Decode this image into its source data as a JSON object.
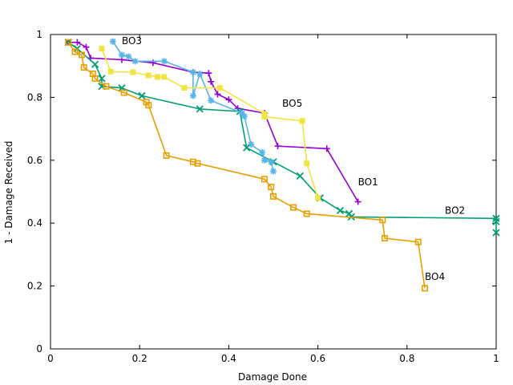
{
  "chart_data": {
    "type": "line",
    "title": "",
    "xlabel": "Damage Done",
    "ylabel": "1 - Damage Received",
    "xlim": [
      0,
      1
    ],
    "ylim": [
      0,
      1
    ],
    "x_ticks": [
      "0",
      "0.2",
      "0.4",
      "0.6",
      "0.8",
      "1"
    ],
    "y_ticks": [
      "0",
      "0.2",
      "0.4",
      "0.6",
      "0.8",
      "1"
    ],
    "grid": false,
    "series": [
      {
        "name": "BO1",
        "color": "#9400d3",
        "marker": "plus",
        "label_at": [
          0.69,
          0.52
        ],
        "points": [
          [
            0.04,
            0.975
          ],
          [
            0.06,
            0.975
          ],
          [
            0.08,
            0.96
          ],
          [
            0.09,
            0.925
          ],
          [
            0.16,
            0.92
          ],
          [
            0.23,
            0.91
          ],
          [
            0.32,
            0.88
          ],
          [
            0.355,
            0.877
          ],
          [
            0.36,
            0.85
          ],
          [
            0.375,
            0.81
          ],
          [
            0.4,
            0.793
          ],
          [
            0.42,
            0.765
          ],
          [
            0.48,
            0.75
          ],
          [
            0.51,
            0.645
          ],
          [
            0.62,
            0.637
          ],
          [
            0.69,
            0.468
          ]
        ]
      },
      {
        "name": "BO2",
        "color": "#009e73",
        "marker": "x",
        "label_at": [
          0.885,
          0.43
        ],
        "points": [
          [
            0.04,
            0.975
          ],
          [
            0.06,
            0.955
          ],
          [
            0.1,
            0.905
          ],
          [
            0.115,
            0.86
          ],
          [
            0.115,
            0.835
          ],
          [
            0.16,
            0.83
          ],
          [
            0.205,
            0.805
          ],
          [
            0.335,
            0.763
          ],
          [
            0.425,
            0.755
          ],
          [
            0.44,
            0.64
          ],
          [
            0.5,
            0.595
          ],
          [
            0.56,
            0.55
          ],
          [
            0.605,
            0.48
          ],
          [
            0.65,
            0.44
          ],
          [
            0.67,
            0.43
          ],
          [
            0.675,
            0.42
          ],
          [
            1.0,
            0.415
          ],
          [
            1.0,
            0.405
          ],
          [
            1.0,
            0.37
          ]
        ]
      },
      {
        "name": "BO3",
        "color": "#56b4e9",
        "marker": "star",
        "label_at": [
          0.16,
          0.97
        ],
        "points": [
          [
            0.14,
            0.978
          ],
          [
            0.16,
            0.935
          ],
          [
            0.175,
            0.93
          ],
          [
            0.19,
            0.915
          ],
          [
            0.255,
            0.915
          ],
          [
            0.32,
            0.88
          ],
          [
            0.32,
            0.805
          ],
          [
            0.335,
            0.875
          ],
          [
            0.36,
            0.79
          ],
          [
            0.43,
            0.75
          ],
          [
            0.435,
            0.74
          ],
          [
            0.45,
            0.65
          ],
          [
            0.475,
            0.625
          ],
          [
            0.48,
            0.6
          ],
          [
            0.495,
            0.595
          ],
          [
            0.5,
            0.565
          ]
        ]
      },
      {
        "name": "BO4",
        "color": "#e69f00",
        "marker": "square",
        "label_at": [
          0.84,
          0.22
        ],
        "points": [
          [
            0.04,
            0.975
          ],
          [
            0.055,
            0.945
          ],
          [
            0.07,
            0.935
          ],
          [
            0.075,
            0.895
          ],
          [
            0.095,
            0.875
          ],
          [
            0.1,
            0.86
          ],
          [
            0.125,
            0.835
          ],
          [
            0.165,
            0.815
          ],
          [
            0.215,
            0.785
          ],
          [
            0.22,
            0.775
          ],
          [
            0.26,
            0.615
          ],
          [
            0.32,
            0.595
          ],
          [
            0.33,
            0.59
          ],
          [
            0.48,
            0.54
          ],
          [
            0.495,
            0.515
          ],
          [
            0.5,
            0.485
          ],
          [
            0.545,
            0.45
          ],
          [
            0.575,
            0.43
          ],
          [
            0.745,
            0.41
          ],
          [
            0.75,
            0.352
          ],
          [
            0.825,
            0.34
          ],
          [
            0.84,
            0.193
          ]
        ]
      },
      {
        "name": "BO5",
        "color": "#f0e442",
        "marker": "square-filled",
        "label_at": [
          0.52,
          0.77
        ],
        "points": [
          [
            0.115,
            0.955
          ],
          [
            0.135,
            0.882
          ],
          [
            0.185,
            0.88
          ],
          [
            0.22,
            0.87
          ],
          [
            0.24,
            0.865
          ],
          [
            0.255,
            0.865
          ],
          [
            0.3,
            0.83
          ],
          [
            0.38,
            0.83
          ],
          [
            0.48,
            0.748
          ],
          [
            0.48,
            0.738
          ],
          [
            0.565,
            0.725
          ],
          [
            0.575,
            0.59
          ],
          [
            0.6,
            0.48
          ]
        ]
      }
    ]
  }
}
